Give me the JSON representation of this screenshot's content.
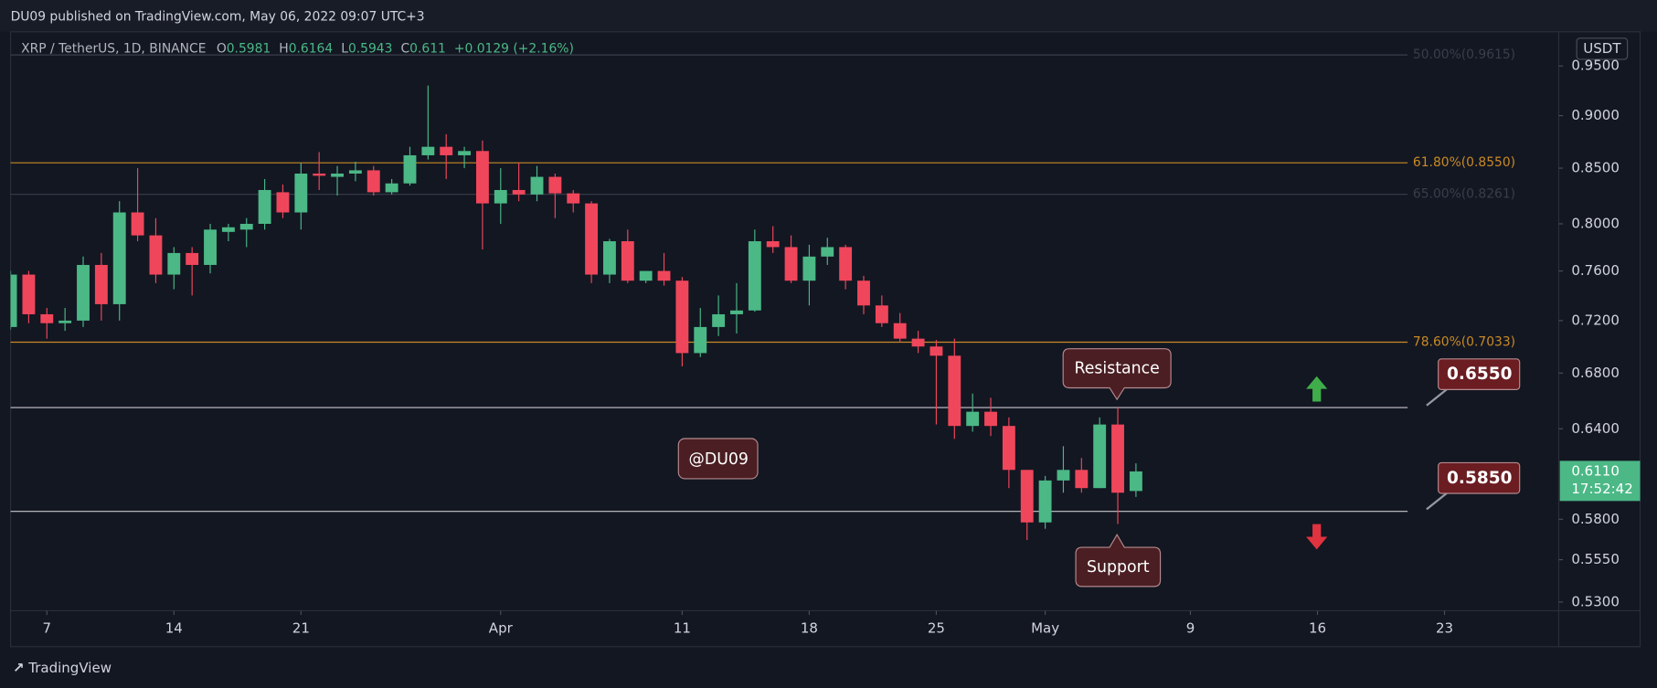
{
  "published": "DU09 published on TradingView.com, May 06, 2022 09:07 UTC+3",
  "footer": "TradingView",
  "chart_data": {
    "type": "candlestick",
    "title": "XRP / TetherUS, 1D, BINANCE",
    "ohlc_prefixes": [
      "O",
      "H",
      "L",
      "C"
    ],
    "change": "+0.0129 (+2.16%)",
    "unit": "USDT",
    "yscale": "log",
    "grid": false,
    "up_color": "#4bb886",
    "down_color": "#f0465b",
    "x": [
      "03-05",
      "03-06",
      "03-07",
      "03-08",
      "03-09",
      "03-10",
      "03-11",
      "03-12",
      "03-13",
      "03-14",
      "03-15",
      "03-16",
      "03-17",
      "03-18",
      "03-19",
      "03-20",
      "03-21",
      "03-22",
      "03-23",
      "03-24",
      "03-25",
      "03-26",
      "03-27",
      "03-28",
      "03-29",
      "03-30",
      "03-31",
      "04-01",
      "04-02",
      "04-03",
      "04-04",
      "04-05",
      "04-06",
      "04-07",
      "04-08",
      "04-09",
      "04-10",
      "04-11",
      "04-12",
      "04-13",
      "04-14",
      "04-15",
      "04-16",
      "04-17",
      "04-18",
      "04-19",
      "04-20",
      "04-21",
      "04-22",
      "04-23",
      "04-24",
      "04-25",
      "04-26",
      "04-27",
      "04-28",
      "04-29",
      "04-30",
      "05-01",
      "05-02",
      "05-03",
      "05-04",
      "05-05",
      "05-06"
    ],
    "open": [
      0.715,
      0.757,
      0.725,
      0.718,
      0.72,
      0.765,
      0.733,
      0.81,
      0.79,
      0.757,
      0.775,
      0.765,
      0.793,
      0.795,
      0.8,
      0.828,
      0.81,
      0.845,
      0.842,
      0.845,
      0.848,
      0.828,
      0.836,
      0.862,
      0.87,
      0.862,
      0.866,
      0.818,
      0.83,
      0.826,
      0.842,
      0.827,
      0.818,
      0.757,
      0.785,
      0.752,
      0.76,
      0.752,
      0.695,
      0.715,
      0.725,
      0.728,
      0.785,
      0.78,
      0.752,
      0.772,
      0.78,
      0.752,
      0.732,
      0.718,
      0.706,
      0.7,
      0.693,
      0.642,
      0.652,
      0.642,
      0.612,
      0.578,
      0.605,
      0.612,
      0.6,
      0.643,
      0.5981
    ],
    "high": [
      0.76,
      0.76,
      0.73,
      0.73,
      0.772,
      0.775,
      0.82,
      0.85,
      0.805,
      0.78,
      0.78,
      0.8,
      0.8,
      0.805,
      0.84,
      0.835,
      0.855,
      0.865,
      0.852,
      0.856,
      0.852,
      0.84,
      0.87,
      0.93,
      0.882,
      0.87,
      0.876,
      0.85,
      0.855,
      0.852,
      0.845,
      0.83,
      0.82,
      0.787,
      0.795,
      0.76,
      0.775,
      0.755,
      0.73,
      0.74,
      0.75,
      0.795,
      0.798,
      0.79,
      0.782,
      0.788,
      0.782,
      0.756,
      0.74,
      0.726,
      0.712,
      0.705,
      0.706,
      0.665,
      0.662,
      0.648,
      0.612,
      0.608,
      0.628,
      0.62,
      0.648,
      0.655,
      0.6164
    ],
    "low": [
      0.713,
      0.718,
      0.706,
      0.712,
      0.715,
      0.72,
      0.72,
      0.785,
      0.75,
      0.745,
      0.74,
      0.758,
      0.785,
      0.78,
      0.795,
      0.805,
      0.795,
      0.83,
      0.825,
      0.838,
      0.825,
      0.826,
      0.834,
      0.858,
      0.84,
      0.85,
      0.778,
      0.8,
      0.82,
      0.82,
      0.805,
      0.81,
      0.75,
      0.75,
      0.75,
      0.75,
      0.748,
      0.685,
      0.692,
      0.708,
      0.71,
      0.727,
      0.775,
      0.75,
      0.732,
      0.765,
      0.745,
      0.725,
      0.715,
      0.703,
      0.695,
      0.643,
      0.633,
      0.638,
      0.635,
      0.6,
      0.567,
      0.574,
      0.597,
      0.597,
      0.6,
      0.577,
      0.5943
    ],
    "close": [
      0.757,
      0.725,
      0.718,
      0.72,
      0.765,
      0.733,
      0.81,
      0.79,
      0.757,
      0.775,
      0.765,
      0.795,
      0.797,
      0.8,
      0.83,
      0.81,
      0.845,
      0.843,
      0.845,
      0.848,
      0.828,
      0.836,
      0.862,
      0.87,
      0.862,
      0.866,
      0.818,
      0.83,
      0.826,
      0.842,
      0.827,
      0.818,
      0.757,
      0.785,
      0.752,
      0.76,
      0.752,
      0.695,
      0.715,
      0.725,
      0.728,
      0.785,
      0.78,
      0.752,
      0.772,
      0.78,
      0.752,
      0.732,
      0.718,
      0.706,
      0.7,
      0.693,
      0.642,
      0.652,
      0.642,
      0.612,
      0.578,
      0.605,
      0.612,
      0.6,
      0.643,
      0.597,
      0.611
    ],
    "xlim": [
      "03-05",
      "05-29"
    ],
    "xticks": [
      {
        "value": "03-07",
        "label": "7"
      },
      {
        "value": "03-14",
        "label": "14"
      },
      {
        "value": "03-21",
        "label": "21"
      },
      {
        "value": "04-01",
        "label": "Apr"
      },
      {
        "value": "04-11",
        "label": "11"
      },
      {
        "value": "04-18",
        "label": "18"
      },
      {
        "value": "04-25",
        "label": "25"
      },
      {
        "value": "05-01",
        "label": "May"
      },
      {
        "value": "05-09",
        "label": "9"
      },
      {
        "value": "05-16",
        "label": "16"
      },
      {
        "value": "05-23",
        "label": "23"
      }
    ],
    "ylim": [
      0.525,
      0.986
    ],
    "yticks": [
      {
        "value": 0.53,
        "label": "0.5300"
      },
      {
        "value": 0.555,
        "label": "0.5550"
      },
      {
        "value": 0.58,
        "label": "0.5800"
      },
      {
        "value": 0.64,
        "label": "0.6400"
      },
      {
        "value": 0.68,
        "label": "0.6800"
      },
      {
        "value": 0.72,
        "label": "0.7200"
      },
      {
        "value": 0.76,
        "label": "0.7600"
      },
      {
        "value": 0.8,
        "label": "0.8000"
      },
      {
        "value": 0.85,
        "label": "0.8500"
      },
      {
        "value": 0.9,
        "label": "0.9000"
      },
      {
        "value": 0.95,
        "label": "0.9500"
      }
    ],
    "fib_levels": [
      {
        "value": 0.9615,
        "label": "50.00%(0.9615)",
        "color": "#3a3e4a"
      },
      {
        "value": 0.855,
        "label": "61.80%(0.8550)",
        "color": "#c98a25"
      },
      {
        "value": 0.8261,
        "label": "65.00%(0.8261)",
        "color": "#3a3e4a"
      },
      {
        "value": 0.7033,
        "label": "78.60%(0.7033)",
        "color": "#c98a25"
      }
    ],
    "levels": [
      {
        "value": 0.655,
        "label": "0.6550"
      },
      {
        "value": 0.585,
        "label": "0.5850"
      }
    ],
    "price_label": {
      "value": 0.611,
      "label": "0.6110",
      "countdown": "17:52:42"
    },
    "annotations": {
      "resistance": "Resistance",
      "support": "Support",
      "watermark": "@DU09"
    }
  }
}
